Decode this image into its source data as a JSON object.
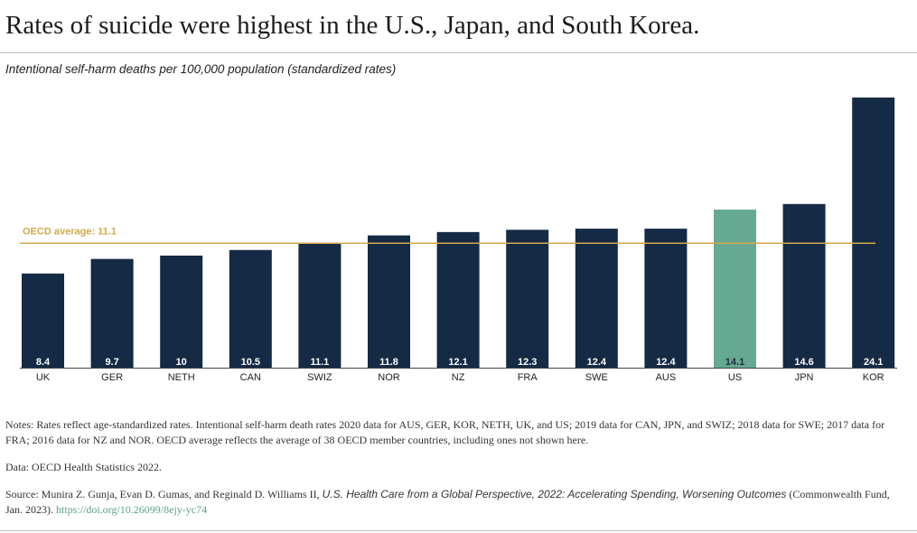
{
  "header": {
    "title": "Rates of suicide were highest in the U.S., Japan, and South Korea.",
    "subtitle": "Intentional self-harm deaths per 100,000 population (standardized rates)"
  },
  "colors": {
    "bar": "#142a45",
    "highlight_bar": "#66a993",
    "average_line": "#d2a94a",
    "link": "#5aa08a"
  },
  "chart_data": {
    "type": "bar",
    "categories": [
      "UK",
      "GER",
      "NETH",
      "CAN",
      "SWIZ",
      "NOR",
      "NZ",
      "FRA",
      "SWE",
      "AUS",
      "US",
      "JPN",
      "KOR"
    ],
    "values": [
      8.4,
      9.7,
      10,
      10.5,
      11.1,
      11.8,
      12.1,
      12.3,
      12.4,
      12.4,
      14.1,
      14.6,
      24.1
    ],
    "value_labels": [
      "8.4",
      "9.7",
      "10",
      "10.5",
      "11.1",
      "11.8",
      "12.1",
      "12.3",
      "12.4",
      "12.4",
      "14.1",
      "14.6",
      "24.1"
    ],
    "highlight": [
      "US"
    ],
    "ylim": [
      0,
      24.5
    ],
    "reference_line": {
      "label": "OECD average: 11.1",
      "value": 11.1
    },
    "grid": false
  },
  "notes": {
    "notes_text": "Notes: Rates reflect age-standardized rates. Intentional self-harm death rates 2020 data for AUS, GER, KOR, NETH, UK, and US; 2019 data for CAN, JPN, and SWIZ; 2018 data for SWE; 2017 data for FRA; 2016 data for NZ and NOR. OECD average reflects the average of 38 OECD member countries, including ones not shown here.",
    "data_text": "Data: OECD Health Statistics 2022.",
    "source_prefix": "Source: Munira Z. Gunja, Evan D. Gumas, and Reginald D. Williams II, ",
    "source_title": "U.S. Health Care from a Global Perspective, 2022: Accelerating Spending, Worsening Outcomes",
    "source_suffix": " (Commonwealth Fund, Jan. 2023). ",
    "source_link": "https://doi.org/10.26099/8ejy-yc74"
  }
}
